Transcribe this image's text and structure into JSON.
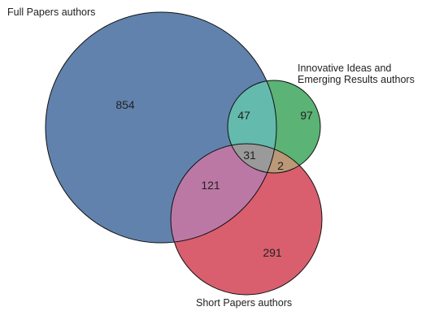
{
  "sets": [
    {
      "id": "full",
      "label": "Full Papers authors",
      "color": "#6182AD"
    },
    {
      "id": "innovative",
      "label_lines": [
        "Innovative Ideas and",
        "Emerging Results authors"
      ],
      "color": "#5BB375"
    },
    {
      "id": "short",
      "label": "Short Papers authors",
      "color": "#D95F6E"
    }
  ],
  "regions": {
    "full_only": {
      "value": "854",
      "color": "#6182AD"
    },
    "innovative_only": {
      "value": "97",
      "color": "#5BB375"
    },
    "short_only": {
      "value": "291",
      "color": "#D95F6E"
    },
    "full_innovative": {
      "value": "47",
      "color": "#64BAAD"
    },
    "full_short": {
      "value": "121",
      "color": "#BC78A4"
    },
    "innovative_short": {
      "value": "2",
      "color": "#BB9876"
    },
    "all_three": {
      "value": "31",
      "color": "#9A9A9A"
    }
  }
}
